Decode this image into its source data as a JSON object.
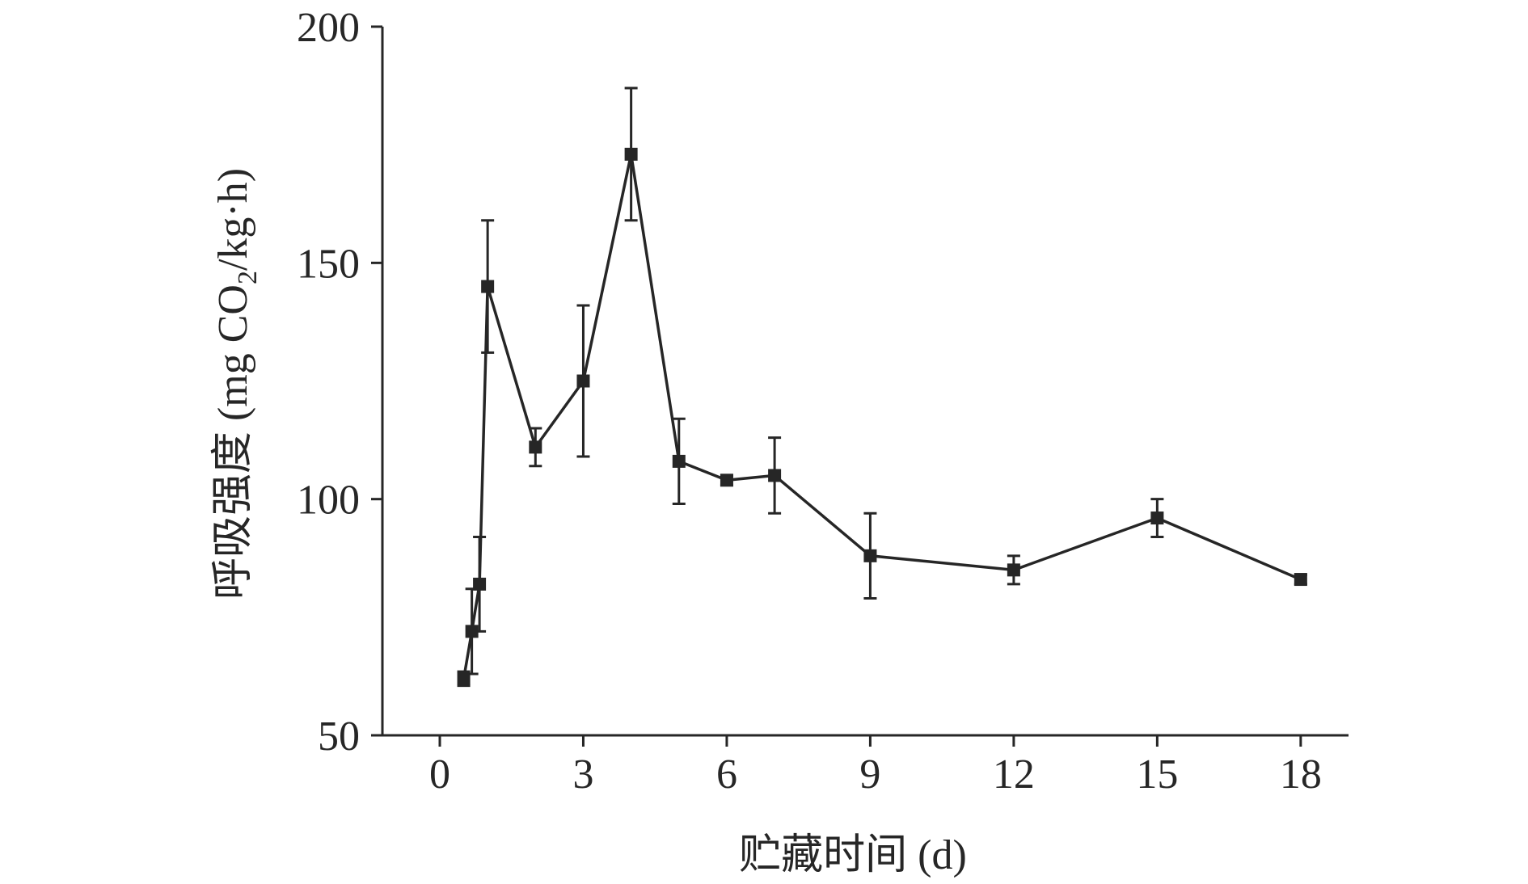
{
  "chart_data": {
    "type": "line",
    "title": "",
    "xlabel": "贮藏时间 (d)",
    "ylabel_parts": {
      "before": "呼吸强度 (mg CO",
      "sub": "2",
      "after": "/kg·h)"
    },
    "xlim": [
      -1.2,
      19.0
    ],
    "ylim": [
      50,
      200
    ],
    "xticks": [
      0,
      3,
      6,
      9,
      12,
      15,
      18
    ],
    "yticks": [
      50,
      100,
      150,
      200
    ],
    "grid": false,
    "color": "#262626",
    "series": [
      {
        "x": [
          0.5,
          0.67,
          0.83,
          1,
          2,
          3,
          4,
          5,
          6,
          7,
          9,
          12,
          15,
          18
        ],
        "y": [
          62,
          72,
          82,
          145,
          111,
          125,
          173,
          108,
          104,
          105,
          88,
          85,
          96,
          83
        ],
        "err": [
          1.5,
          9,
          10,
          14,
          4,
          16,
          14,
          9,
          1,
          8,
          9,
          3,
          4,
          1
        ]
      }
    ]
  }
}
